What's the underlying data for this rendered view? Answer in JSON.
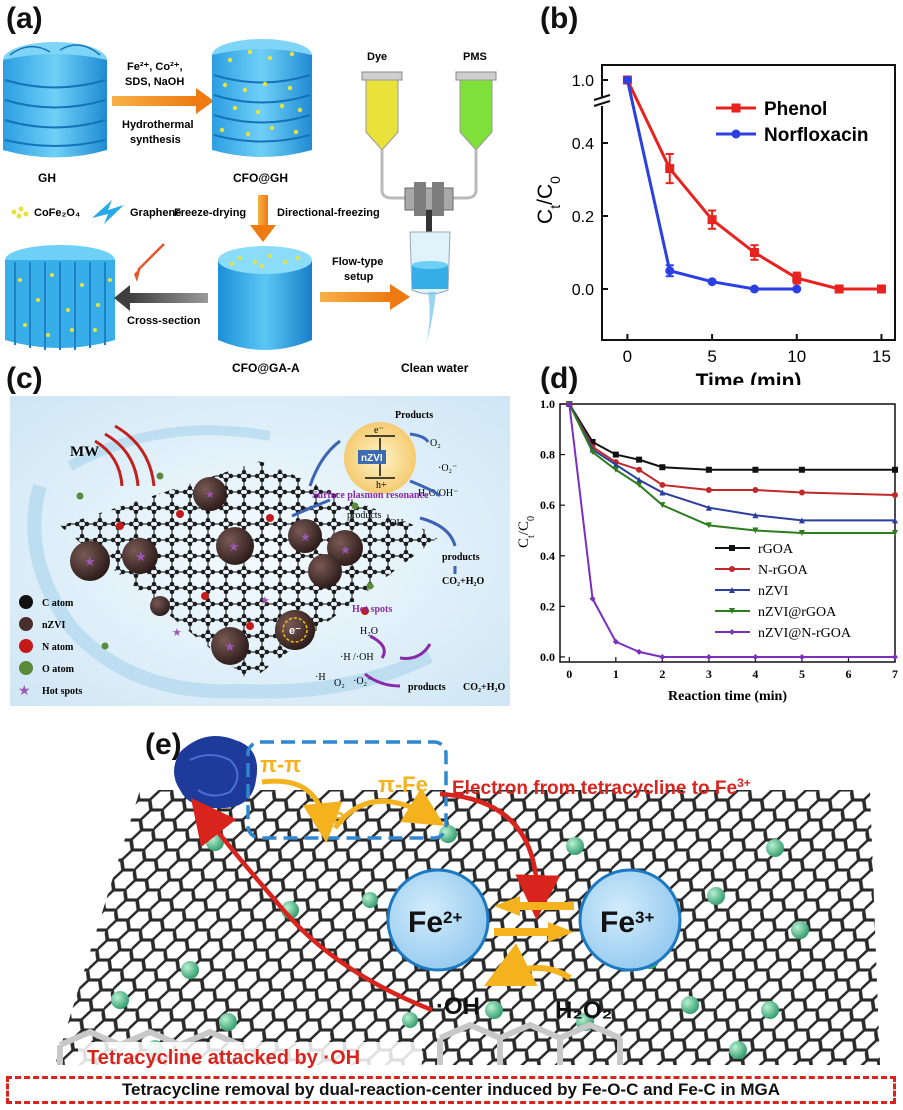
{
  "panel_labels": {
    "a": "(a)",
    "b": "(b)",
    "c": "(c)",
    "d": "(d)",
    "e": "(e)"
  },
  "panel_a": {
    "reagents": [
      "Fe²⁺, Co²⁺,",
      "SDS, NaOH"
    ],
    "process1": [
      "Hydrothermal",
      "synthesis"
    ],
    "gh": "GH",
    "cfo_gh": "CFO@GH",
    "legend_cfo": "CoFe₂O₄",
    "legend_graphene": "Graphene",
    "freeze_drying": "Freeze-drying",
    "directional_freezing": "Directional-freezing",
    "cross_section": "Cross-section",
    "cfo_ga": "CFO@GA-A",
    "flow_type": [
      "Flow-type",
      "setup"
    ],
    "dye": "Dye",
    "pms": "PMS",
    "clean_water": "Clean water",
    "colors": {
      "graphene": "#29a9e6",
      "dye": "#e9e23a",
      "pms": "#7fe03a",
      "arrow": "#f08a1c"
    }
  },
  "panel_b": {
    "chart_data": {
      "type": "line",
      "xlabel": "Time (min)",
      "ylabel": "Ct/C0",
      "xlim": [
        -1.5,
        15.8
      ],
      "x_ticks": [
        "0",
        "5",
        "10",
        "15"
      ],
      "y_ticks": [
        "0.0",
        "0.2",
        "0.4",
        "1.0"
      ],
      "axis_break": "between 0.4 and 1.0",
      "legend": "top-right",
      "series": [
        {
          "name": "Phenol",
          "color": "#e8231f",
          "marker": "square",
          "x": [
            0,
            2.5,
            5,
            7.5,
            10,
            12.5,
            15
          ],
          "y": [
            1.0,
            0.33,
            0.19,
            0.1,
            0.03,
            0.0,
            0.0
          ],
          "err": [
            0,
            0.04,
            0.025,
            0.02,
            0.015,
            0,
            0
          ]
        },
        {
          "name": "Norfloxacin",
          "color": "#2b3fe3",
          "marker": "circle",
          "x": [
            0,
            2.5,
            5,
            7.5,
            10
          ],
          "y": [
            1.0,
            0.05,
            0.02,
            0.0,
            0.0
          ],
          "err": [
            0,
            0.015,
            0,
            0,
            0
          ]
        }
      ]
    }
  },
  "panel_c": {
    "mw": "MW",
    "products_top": "Products",
    "o2": "O₂",
    "o2_radical": "·O₂⁻",
    "e_minus": "e⁻",
    "h_plus": "h+",
    "nzvi": "nZVI",
    "h2o_oh": "H₂O/OH⁻",
    "spr": "Surface plasmon resonance",
    "products_mid": "products",
    "oh_radical": "·OH",
    "products_right": "products",
    "co2_h2o": "CO₂+H₂O",
    "hot_spots": "Hot spots",
    "h2o": "H₂O",
    "h_oh": "·H /·OH",
    "h_rad": "·H",
    "o2_bottom": "O₂",
    "o2_rad_bottom": "·O₂⁻",
    "products_bottom": "products",
    "co2_h2o_bottom": "CO₂+H₂O",
    "legend": [
      "C atom",
      "nZVI",
      "N atom",
      "O atom",
      "Hot spots"
    ]
  },
  "panel_d": {
    "chart_data": {
      "type": "line",
      "xlabel": "Reaction time (min)",
      "ylabel": "Ct/C0",
      "xlim": [
        -0.2,
        7
      ],
      "ylim": [
        -0.02,
        1.0
      ],
      "x_ticks": [
        "0",
        "1",
        "2",
        "3",
        "4",
        "5",
        "6",
        "7"
      ],
      "y_ticks": [
        "0.0",
        "0.2",
        "0.4",
        "0.6",
        "0.8",
        "1.0"
      ],
      "legend": "center-right",
      "series": [
        {
          "name": "rGOA",
          "color": "#111111",
          "marker": "square",
          "x": [
            0,
            0.5,
            1,
            1.5,
            2,
            3,
            4,
            5,
            7
          ],
          "y": [
            1.0,
            0.85,
            0.8,
            0.78,
            0.75,
            0.74,
            0.74,
            0.74,
            0.74
          ]
        },
        {
          "name": "N-rGOA",
          "color": "#c0282a",
          "marker": "circle",
          "x": [
            0,
            0.5,
            1,
            1.5,
            2,
            3,
            4,
            5,
            7
          ],
          "y": [
            1.0,
            0.83,
            0.77,
            0.74,
            0.68,
            0.66,
            0.66,
            0.65,
            0.64
          ]
        },
        {
          "name": "nZVI",
          "color": "#2c3e9e",
          "marker": "triangle",
          "x": [
            0,
            0.5,
            1,
            1.5,
            2,
            3,
            4,
            5,
            7
          ],
          "y": [
            1.0,
            0.82,
            0.76,
            0.7,
            0.65,
            0.59,
            0.56,
            0.54,
            0.54
          ]
        },
        {
          "name": "nZVI@rGOA",
          "color": "#2d7d1f",
          "marker": "tri-down",
          "x": [
            0,
            0.5,
            1,
            1.5,
            2,
            3,
            4,
            5,
            7
          ],
          "y": [
            1.0,
            0.81,
            0.74,
            0.68,
            0.6,
            0.52,
            0.5,
            0.49,
            0.49
          ]
        },
        {
          "name": "nZVI@N-rGOA",
          "color": "#7a2fbe",
          "marker": "diamond",
          "x": [
            0,
            0.5,
            1,
            1.5,
            2,
            3,
            4,
            5,
            7
          ],
          "y": [
            1.0,
            0.23,
            0.06,
            0.02,
            0.0,
            0.0,
            0.0,
            0.0,
            0.0
          ]
        }
      ]
    }
  },
  "panel_e": {
    "pi_pi": "π-π",
    "e": "e",
    "pi_fe": "π-Fe",
    "electron_label": "Electron from tetracycline to Fe",
    "electron_sup": "3+",
    "fe2": "Fe",
    "fe2_sup": "2+",
    "fe3": "Fe",
    "fe3_sup": "3+",
    "oh": "·OH",
    "h2o2": "H₂O₂",
    "attacked": "Tetracycline attacked by ·OH",
    "footer": "Tetracycline removal by dual-reaction-center induced by Fe-O-C and Fe-C in MGA",
    "colors": {
      "arrow_red": "#d9231d",
      "arrow_orange": "#f4b21f",
      "fe_fill": "#9fd0f1",
      "fe_stroke": "#1b78c2",
      "bead": "#4bc08a",
      "box": "#2f87d0"
    }
  }
}
